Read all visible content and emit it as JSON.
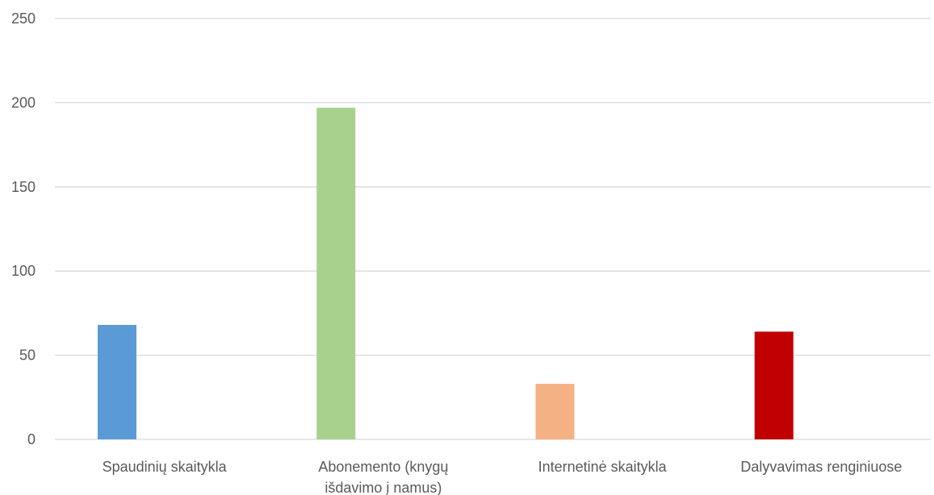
{
  "chart_data": {
    "type": "bar",
    "categories": [
      [
        "Spaudinių skaitykla"
      ],
      [
        "Abonemento (knygų",
        "išdavimo į namus)"
      ],
      [
        "Internetinė skaitykla"
      ],
      [
        "Dalyvavimas renginiuose"
      ]
    ],
    "values": [
      68,
      197,
      33,
      64
    ],
    "colors": [
      "#5b9bd5",
      "#a9d18e",
      "#f4b183",
      "#c00000"
    ],
    "yticks": [
      0,
      50,
      100,
      150,
      200,
      250
    ],
    "ylim": [
      0,
      250
    ],
    "grid": true,
    "legend": "none",
    "title": "",
    "xlabel": "",
    "ylabel": ""
  }
}
